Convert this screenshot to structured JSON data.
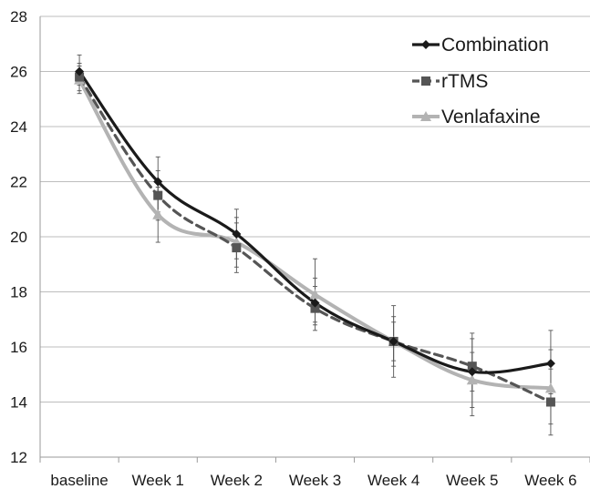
{
  "chart_data": {
    "type": "line",
    "categories": [
      "baseline",
      "Week 1",
      "Week 2",
      "Week 3",
      "Week 4",
      "Week 5",
      "Week 6"
    ],
    "ylim": [
      12,
      28
    ],
    "yticks": [
      12,
      14,
      16,
      18,
      20,
      22,
      24,
      26,
      28
    ],
    "grid": "horizontal",
    "legend_position": "top-right",
    "series": [
      {
        "name": "Combination",
        "color": "#1a1a1a",
        "dash": "solid",
        "marker": "diamond",
        "values": [
          26.0,
          22.0,
          20.1,
          17.6,
          16.2,
          15.1,
          15.4
        ],
        "error_low": [
          25.5,
          20.9,
          19.2,
          16.8,
          14.9,
          13.5,
          14.3
        ],
        "error_high": [
          26.6,
          22.9,
          21.0,
          18.5,
          17.5,
          16.5,
          16.6
        ]
      },
      {
        "name": "rTMS",
        "color": "#555555",
        "dash": "dashed",
        "marker": "square",
        "values": [
          25.8,
          21.5,
          19.6,
          17.4,
          16.2,
          15.3,
          14.0
        ],
        "error_low": [
          25.3,
          20.6,
          18.7,
          16.6,
          15.5,
          14.4,
          12.8
        ],
        "error_high": [
          26.3,
          22.4,
          20.5,
          18.2,
          16.9,
          16.3,
          15.2
        ]
      },
      {
        "name": "Venlafaxine",
        "color": "#b3b3b3",
        "dash": "solid",
        "marker": "triangle",
        "values": [
          25.7,
          20.8,
          19.8,
          17.9,
          16.2,
          14.8,
          14.5
        ],
        "error_low": [
          25.2,
          19.8,
          18.9,
          16.9,
          15.3,
          13.8,
          13.2
        ],
        "error_high": [
          26.2,
          21.8,
          20.7,
          19.2,
          17.1,
          15.8,
          15.9
        ]
      }
    ]
  }
}
